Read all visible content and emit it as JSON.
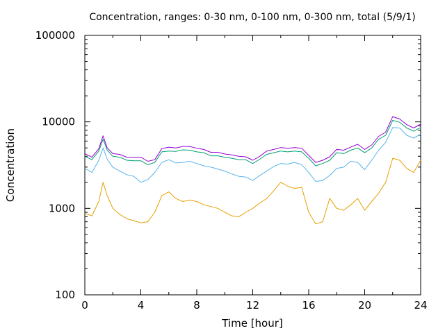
{
  "chart_data": {
    "type": "line",
    "title": "Concentration, ranges: 0-30 nm, 0-100 nm, 0-300 nm, total (5/9/1)",
    "xlabel": "Time [hour]",
    "ylabel": "Concentration",
    "xlim": [
      0,
      24
    ],
    "ylim": [
      100,
      100000
    ],
    "yscale": "log",
    "grid": false,
    "legend": "none",
    "x_ticks": [
      "0",
      "4",
      "8",
      "12",
      "16",
      "20",
      "24"
    ],
    "y_ticks": [
      "100",
      "1000",
      "10000",
      "100000"
    ],
    "x": [
      0,
      0.5,
      1,
      1.3,
      1.6,
      2,
      2.5,
      3,
      3.5,
      4,
      4.5,
      5,
      5.5,
      6,
      6.5,
      7,
      7.5,
      8,
      8.5,
      9,
      9.5,
      10,
      10.5,
      11,
      11.5,
      12,
      12.5,
      13,
      13.5,
      14,
      14.5,
      15,
      15.5,
      16,
      16.5,
      17,
      17.5,
      18,
      18.5,
      19,
      19.5,
      20,
      20.5,
      21,
      21.5,
      22,
      22.5,
      23,
      23.5,
      24
    ],
    "series": [
      {
        "color": "#e69f00",
        "values": [
          880,
          820,
          1200,
          2000,
          1400,
          1000,
          850,
          760,
          720,
          680,
          700,
          900,
          1400,
          1550,
          1300,
          1200,
          1250,
          1200,
          1100,
          1050,
          1000,
          900,
          820,
          800,
          900,
          1000,
          1150,
          1300,
          1600,
          2000,
          1800,
          1700,
          1750,
          900,
          660,
          700,
          1300,
          1000,
          950,
          1100,
          1300,
          950,
          1200,
          1500,
          2000,
          3800,
          3600,
          2900,
          2600,
          3600
        ]
      },
      {
        "color": "#56b4e9",
        "values": [
          2900,
          2600,
          3600,
          5000,
          3700,
          3000,
          2700,
          2450,
          2350,
          2000,
          2150,
          2600,
          3400,
          3650,
          3350,
          3400,
          3500,
          3300,
          3100,
          3000,
          2850,
          2700,
          2500,
          2350,
          2300,
          2100,
          2400,
          2700,
          3050,
          3300,
          3250,
          3400,
          3200,
          2600,
          2050,
          2100,
          2400,
          2900,
          3000,
          3500,
          3400,
          2800,
          3600,
          4700,
          5800,
          8600,
          8500,
          7000,
          6500,
          7200
        ]
      },
      {
        "color": "#009e73",
        "values": [
          4000,
          3650,
          4600,
          6300,
          4700,
          4000,
          3900,
          3600,
          3550,
          3550,
          3200,
          3400,
          4500,
          4600,
          4550,
          4750,
          4700,
          4500,
          4400,
          4050,
          4050,
          3900,
          3800,
          3650,
          3650,
          3300,
          3700,
          4200,
          4400,
          4600,
          4500,
          4600,
          4500,
          3800,
          3100,
          3300,
          3600,
          4400,
          4300,
          4700,
          5000,
          4400,
          5000,
          6300,
          7000,
          10400,
          9900,
          8500,
          7800,
          8600
        ]
      },
      {
        "color": "#9400d3",
        "values": [
          4300,
          3900,
          4900,
          6900,
          5000,
          4300,
          4200,
          3900,
          3900,
          3900,
          3500,
          3650,
          4900,
          5100,
          5000,
          5200,
          5200,
          4950,
          4800,
          4450,
          4450,
          4250,
          4150,
          4000,
          3950,
          3600,
          4000,
          4600,
          4800,
          5050,
          4950,
          5050,
          4950,
          4100,
          3400,
          3600,
          3950,
          4800,
          4700,
          5100,
          5500,
          4800,
          5400,
          6800,
          7600,
          11500,
          10800,
          9300,
          8500,
          9400
        ]
      }
    ]
  }
}
